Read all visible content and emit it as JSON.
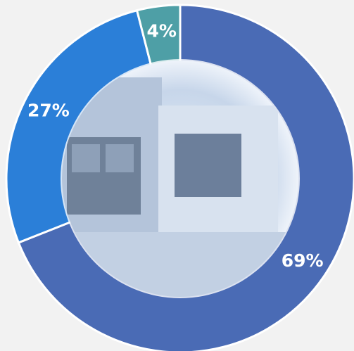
{
  "chart_data": {
    "type": "donut",
    "values": [
      69,
      27,
      4
    ],
    "value_labels": [
      "69%",
      "27%",
      "4%"
    ],
    "colors": [
      "#4a6bb5",
      "#2b7fd8",
      "#4e9fa6"
    ]
  }
}
